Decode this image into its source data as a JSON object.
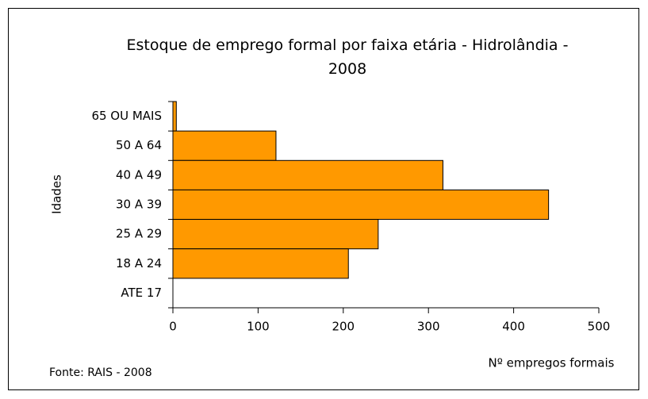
{
  "chart_data": {
    "type": "hbar",
    "title": "Estoque de emprego formal por faixa etária - Hidrolândia - 2008",
    "categories": [
      "65 OU MAIS",
      "50 A 64",
      "40 A 49",
      "30 A 39",
      "25 A 29",
      "18 A 24",
      "ATE 17"
    ],
    "values": [
      4,
      121,
      317,
      441,
      241,
      206,
      0
    ],
    "color": "#ff9900",
    "xlim": [
      0,
      500
    ],
    "xticks": [
      0,
      100,
      200,
      300,
      400,
      500
    ],
    "x_label": "Nº empregos formais",
    "y_label": "Idades",
    "source": "Fonte: RAIS - 2008"
  }
}
